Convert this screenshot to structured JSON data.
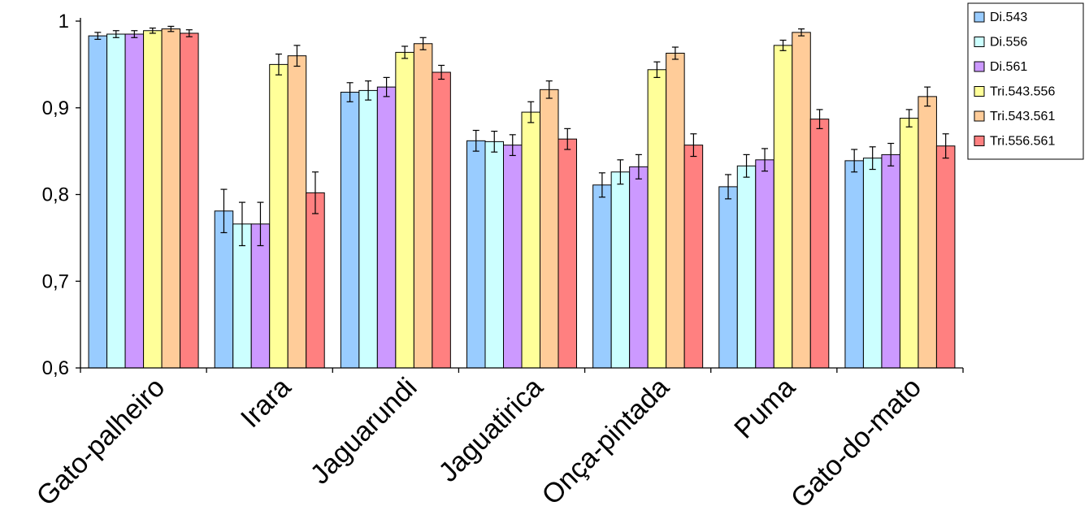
{
  "chart_data": {
    "type": "bar",
    "categories": [
      "Gato-palheiro",
      "Irara",
      "Jaguarundi",
      "Jaguatirica",
      "Onça-pintada",
      "Puma",
      "Gato-do-mato"
    ],
    "ylim": [
      0.6,
      1.0
    ],
    "yticks": [
      "0,6",
      "0,7",
      "0,8",
      "0,9",
      "1"
    ],
    "ytick_values": [
      0.6,
      0.7,
      0.8,
      0.9,
      1.0
    ],
    "grid": false,
    "legend_position": "top-right",
    "error_bars": true,
    "series": [
      {
        "name": "Di.543",
        "color": "#99ccff",
        "values": [
          0.983,
          0.781,
          0.918,
          0.862,
          0.811,
          0.809,
          0.839
        ],
        "errors": [
          0.004,
          0.025,
          0.011,
          0.012,
          0.014,
          0.014,
          0.013
        ]
      },
      {
        "name": "Di.556",
        "color": "#ccffff",
        "values": [
          0.985,
          0.766,
          0.92,
          0.861,
          0.826,
          0.833,
          0.842
        ],
        "errors": [
          0.004,
          0.025,
          0.011,
          0.012,
          0.014,
          0.013,
          0.013
        ]
      },
      {
        "name": "Di.561",
        "color": "#cc99ff",
        "values": [
          0.985,
          0.766,
          0.924,
          0.857,
          0.832,
          0.84,
          0.846
        ],
        "errors": [
          0.004,
          0.025,
          0.011,
          0.012,
          0.014,
          0.013,
          0.013
        ]
      },
      {
        "name": "Tri.543.556",
        "color": "#ffff99",
        "values": [
          0.989,
          0.95,
          0.964,
          0.895,
          0.944,
          0.972,
          0.888
        ],
        "errors": [
          0.003,
          0.012,
          0.007,
          0.012,
          0.009,
          0.006,
          0.01
        ]
      },
      {
        "name": "Tri.543.561",
        "color": "#ffcc99",
        "values": [
          0.991,
          0.96,
          0.974,
          0.921,
          0.963,
          0.987,
          0.913
        ],
        "errors": [
          0.003,
          0.012,
          0.007,
          0.01,
          0.007,
          0.004,
          0.011
        ]
      },
      {
        "name": "Tri.556.561",
        "color": "#ff8080",
        "values": [
          0.986,
          0.802,
          0.941,
          0.864,
          0.857,
          0.887,
          0.856
        ],
        "errors": [
          0.004,
          0.024,
          0.008,
          0.012,
          0.013,
          0.011,
          0.014
        ]
      }
    ]
  }
}
